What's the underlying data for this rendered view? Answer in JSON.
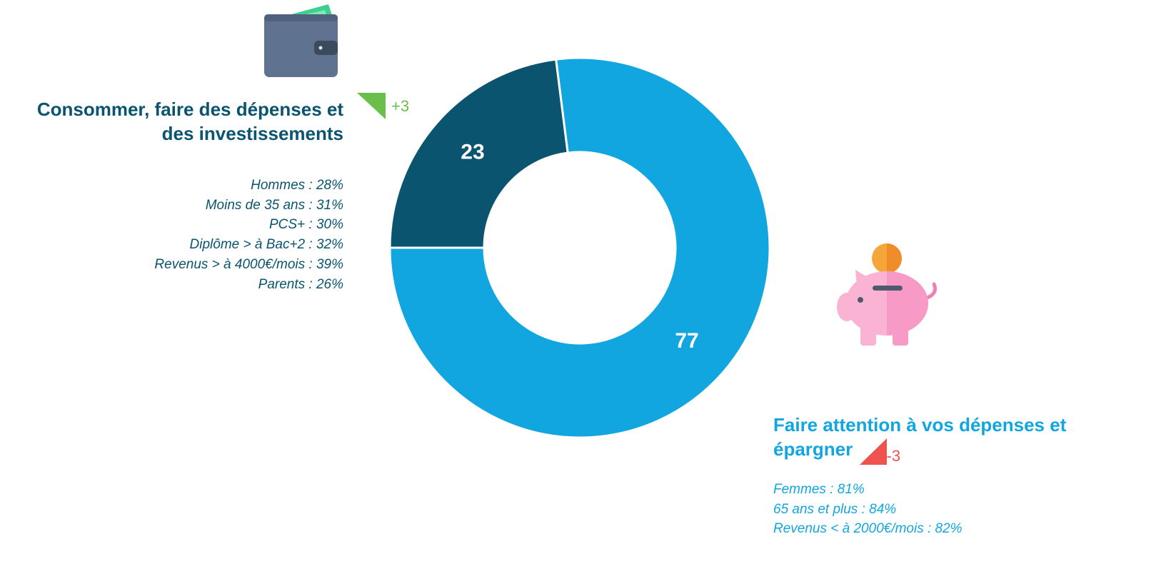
{
  "chart_data": {
    "type": "donut",
    "categories": [
      "Consommer, faire des dépenses et des investissements",
      "Faire attention à vos dépenses et épargner"
    ],
    "values": [
      23,
      77
    ],
    "colors": [
      "#0a5470",
      "#12a6e0"
    ],
    "changes": [
      "+3",
      "-3"
    ],
    "change_colors": [
      "#6abf4b",
      "#ef5350"
    ],
    "details": [
      [
        "Hommes : 28%",
        "Moins de 35 ans : 31%",
        "PCS+ : 30%",
        "Diplôme > à Bac+2 : 32%",
        "Revenus > à 4000€/mois : 39%",
        "Parents : 26%"
      ],
      [
        "Femmes : 81%",
        "65 ans et plus : 84%",
        "Revenus < à 2000€/mois : 82%"
      ]
    ]
  }
}
